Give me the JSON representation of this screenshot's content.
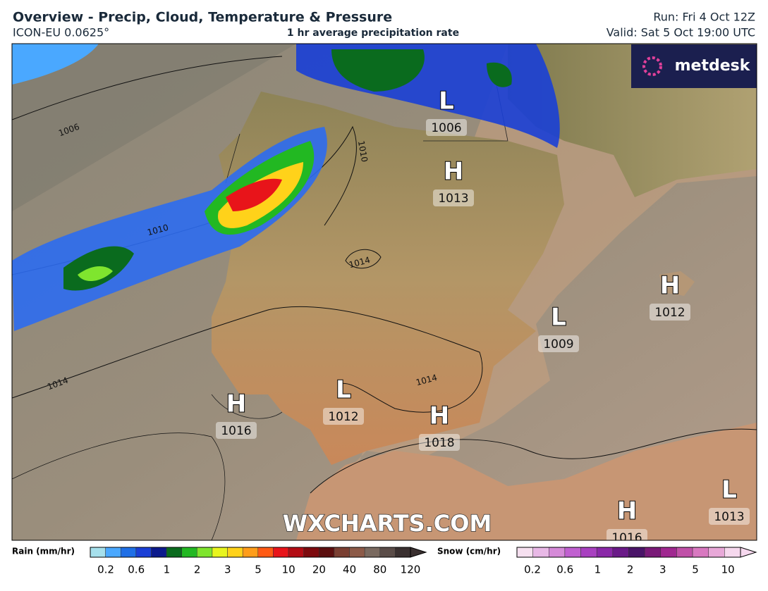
{
  "header": {
    "title": "Overview - Precip, Cloud, Temperature & Pressure",
    "model": "ICON-EU 0.0625°",
    "field": "1 hr average precipitation rate",
    "run": "Run: Fri 4 Oct 12Z",
    "valid": "Valid: Sat 5 Oct 19:00 UTC"
  },
  "logo": "metdesk",
  "watermark": "WXCHARTS.COM",
  "isobar_labels": [
    "1006",
    "1010",
    "1010",
    "1014",
    "1014",
    "1014"
  ],
  "pressure_systems": [
    {
      "symbol": "L",
      "value": "1006"
    },
    {
      "symbol": "H",
      "value": "1013"
    },
    {
      "symbol": "H",
      "value": "1012"
    },
    {
      "symbol": "L",
      "value": "1009"
    },
    {
      "symbol": "L",
      "value": "1012"
    },
    {
      "symbol": "H",
      "value": "1016"
    },
    {
      "symbol": "H",
      "value": "1018"
    },
    {
      "symbol": "H",
      "value": "1016"
    },
    {
      "symbol": "L",
      "value": "1013"
    }
  ],
  "legends": {
    "rain": {
      "title": "Rain (mm/hr)",
      "ticks": [
        "0.2",
        "0.6",
        "1",
        "2",
        "3",
        "5",
        "10",
        "20",
        "40",
        "80",
        "120"
      ]
    },
    "snow": {
      "title": "Snow (cm/hr)",
      "ticks": [
        "0.2",
        "0.6",
        "1",
        "2",
        "3",
        "5",
        "10"
      ]
    }
  }
}
